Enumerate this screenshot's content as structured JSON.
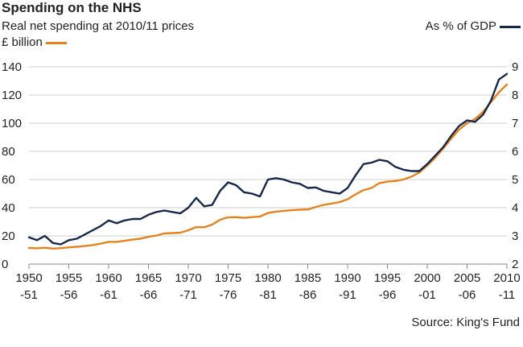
{
  "title": "Spending on the NHS",
  "subtitle": "Real net spending at 2010/11 prices",
  "left_axis_label": "£ billion",
  "right_axis_label": "As % of GDP",
  "source": "Source: King's Fund",
  "colors": {
    "spending": "#e8821c",
    "gdp_share": "#14284b",
    "grid": "#cfcfcf"
  },
  "chart_data": {
    "type": "line",
    "title": "Spending on the NHS",
    "subtitle": "Real net spending at 2010/11 prices",
    "x_start_year": 1950,
    "x_tick_labels": [
      {
        "year": 1950,
        "top": "1950",
        "bottom": "-51"
      },
      {
        "year": 1955,
        "top": "1955",
        "bottom": "-56"
      },
      {
        "year": 1960,
        "top": "1960",
        "bottom": "-61"
      },
      {
        "year": 1965,
        "top": "1965",
        "bottom": "-66"
      },
      {
        "year": 1970,
        "top": "1970",
        "bottom": "-71"
      },
      {
        "year": 1975,
        "top": "1975",
        "bottom": "-76"
      },
      {
        "year": 1980,
        "top": "1980",
        "bottom": "-81"
      },
      {
        "year": 1985,
        "top": "1985",
        "bottom": "-86"
      },
      {
        "year": 1990,
        "top": "1990",
        "bottom": "-91"
      },
      {
        "year": 1995,
        "top": "1995",
        "bottom": "-96"
      },
      {
        "year": 2000,
        "top": "2000",
        "bottom": "-01"
      },
      {
        "year": 2005,
        "top": "2005",
        "bottom": "-06"
      },
      {
        "year": 2010,
        "top": "2010",
        "bottom": "-11"
      }
    ],
    "xlim": [
      1950,
      2010
    ],
    "y_left": {
      "label": "£ billion",
      "lim": [
        0,
        140
      ],
      "ticks": [
        0,
        20,
        40,
        60,
        80,
        100,
        120,
        140
      ]
    },
    "y_right": {
      "label": "As % of GDP",
      "lim": [
        2,
        9
      ],
      "ticks": [
        2,
        3,
        4,
        5,
        6,
        7,
        8,
        9
      ]
    },
    "grid": "horizontal",
    "series": [
      {
        "name": "£ billion",
        "axis": "left",
        "years": [
          1950,
          1951,
          1952,
          1953,
          1954,
          1955,
          1956,
          1957,
          1958,
          1959,
          1960,
          1961,
          1962,
          1963,
          1964,
          1965,
          1966,
          1967,
          1968,
          1969,
          1970,
          1971,
          1972,
          1973,
          1974,
          1975,
          1976,
          1977,
          1978,
          1979,
          1980,
          1981,
          1982,
          1983,
          1984,
          1985,
          1986,
          1987,
          1988,
          1989,
          1990,
          1991,
          1992,
          1993,
          1994,
          1995,
          1996,
          1997,
          1998,
          1999,
          2000,
          2001,
          2002,
          2003,
          2004,
          2005,
          2006,
          2007,
          2008,
          2009,
          2010
        ],
        "values": [
          11.5,
          11.2,
          11.6,
          11.0,
          11.3,
          11.9,
          12.3,
          12.8,
          13.5,
          14.5,
          15.8,
          15.8,
          16.5,
          17.4,
          18.0,
          19.4,
          20.2,
          21.8,
          22.0,
          22.3,
          24.0,
          26.2,
          26.1,
          28.0,
          31.5,
          33.2,
          33.3,
          32.8,
          33.3,
          33.8,
          36.2,
          37.2,
          37.8,
          38.2,
          38.6,
          38.8,
          40.5,
          42.0,
          43.0,
          44.0,
          46.0,
          49.5,
          52.5,
          54.0,
          57.5,
          58.5,
          59.0,
          60.0,
          62.0,
          65.0,
          70.0,
          75.5,
          82.0,
          89.0,
          95.5,
          100.0,
          103.0,
          108.0,
          115.0,
          122.0,
          127.5
        ]
      },
      {
        "name": "As % of GDP",
        "axis": "right",
        "years": [
          1950,
          1951,
          1952,
          1953,
          1954,
          1955,
          1956,
          1957,
          1958,
          1959,
          1960,
          1961,
          1962,
          1963,
          1964,
          1965,
          1966,
          1967,
          1968,
          1969,
          1970,
          1971,
          1972,
          1973,
          1974,
          1975,
          1976,
          1977,
          1978,
          1979,
          1980,
          1981,
          1982,
          1983,
          1984,
          1985,
          1986,
          1987,
          1988,
          1989,
          1990,
          1991,
          1992,
          1993,
          1994,
          1995,
          1996,
          1997,
          1998,
          1999,
          2000,
          2001,
          2002,
          2003,
          2004,
          2005,
          2006,
          2007,
          2008,
          2009,
          2010
        ],
        "values": [
          2.95,
          2.85,
          3.0,
          2.75,
          2.7,
          2.85,
          2.9,
          3.05,
          3.2,
          3.35,
          3.55,
          3.45,
          3.55,
          3.6,
          3.6,
          3.75,
          3.85,
          3.9,
          3.85,
          3.8,
          4.0,
          4.35,
          4.05,
          4.1,
          4.6,
          4.9,
          4.8,
          4.55,
          4.5,
          4.4,
          5.0,
          5.05,
          5.0,
          4.9,
          4.85,
          4.7,
          4.72,
          4.6,
          4.55,
          4.5,
          4.7,
          5.15,
          5.55,
          5.6,
          5.7,
          5.65,
          5.45,
          5.35,
          5.3,
          5.3,
          5.55,
          5.85,
          6.15,
          6.55,
          6.9,
          7.1,
          7.05,
          7.3,
          7.8,
          8.55,
          8.75
        ]
      }
    ]
  }
}
